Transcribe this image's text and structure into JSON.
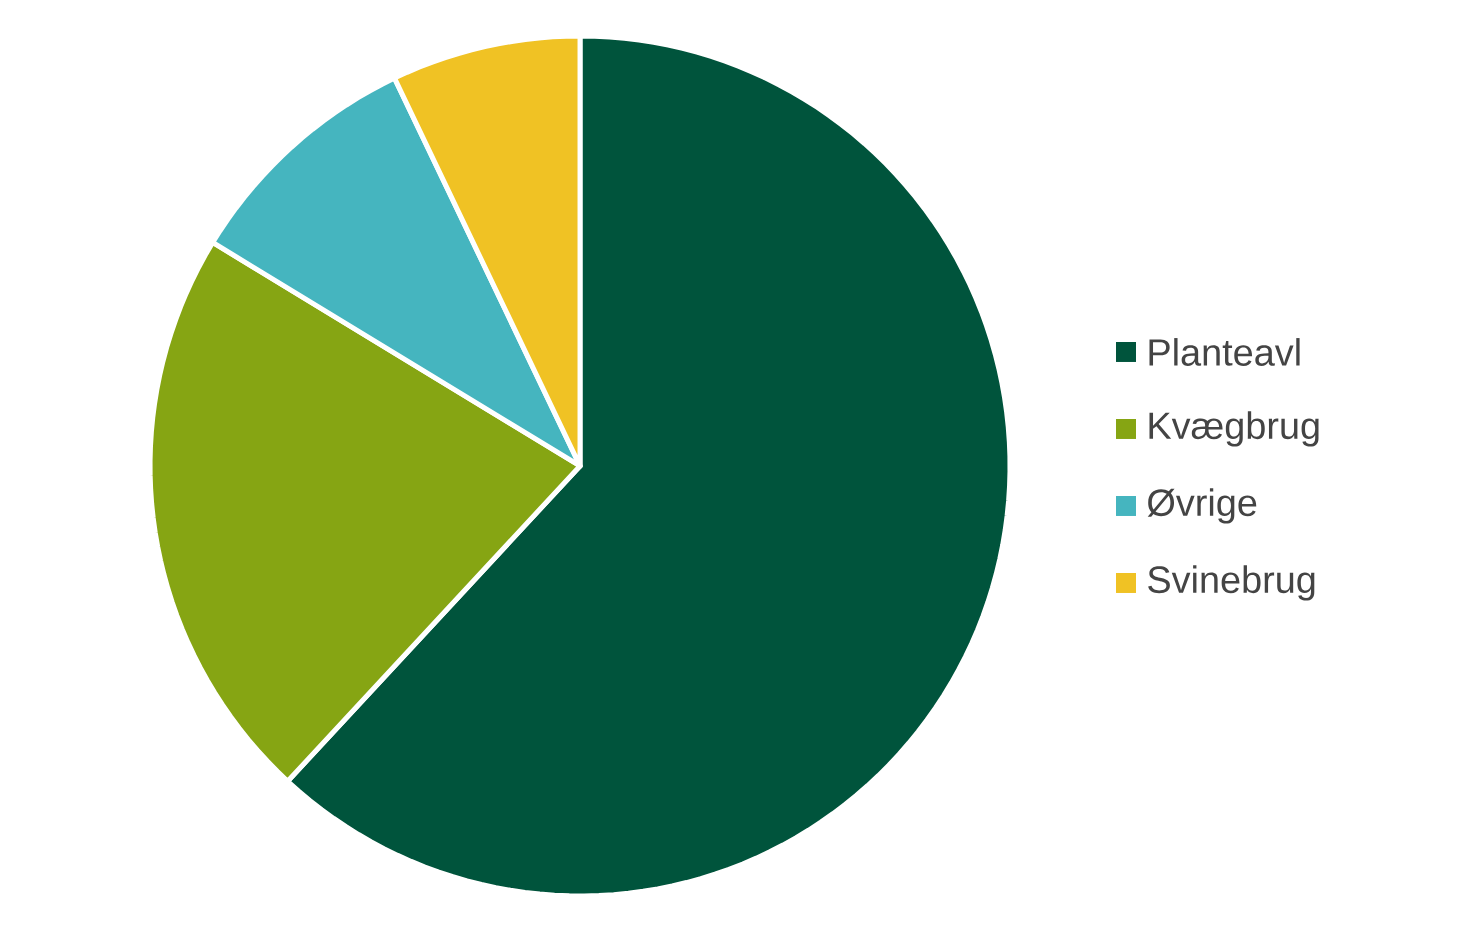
{
  "chart_data": {
    "type": "pie",
    "categories": [
      "Planteavl",
      "Kvægbrug",
      "Øvrige",
      "Svinebrug"
    ],
    "values": [
      61.9,
      21.8,
      9.2,
      7.1
    ],
    "colors": [
      "#00543c",
      "#86a513",
      "#45b5bf",
      "#f0c224"
    ],
    "legend": "right"
  }
}
